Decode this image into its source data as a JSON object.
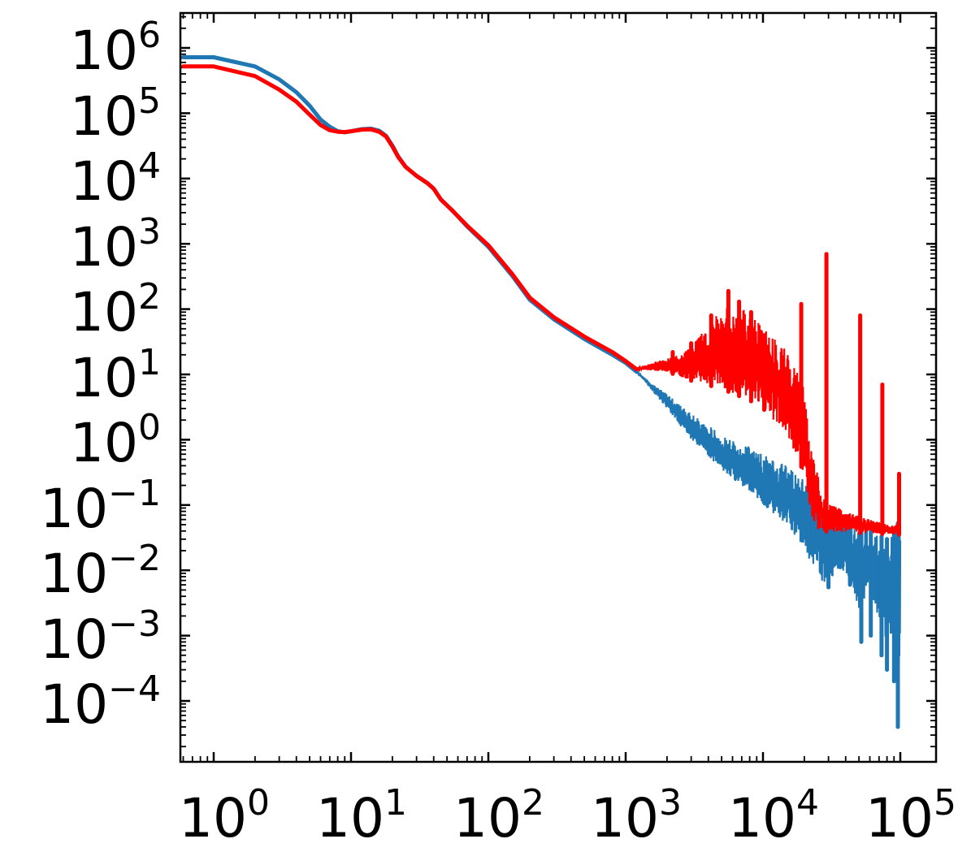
{
  "chart_data": {
    "type": "line",
    "title": "",
    "xlabel": "",
    "ylabel": "",
    "xscale": "log",
    "yscale": "log",
    "xlim": [
      0.55,
      200000
    ],
    "ylim": [
      3.2e-05,
      3500000
    ],
    "grid": false,
    "legend": "none",
    "x_ticks": [
      {
        "base": "10",
        "exp": "0",
        "value": 1
      },
      {
        "base": "10",
        "exp": "1",
        "value": 10
      },
      {
        "base": "10",
        "exp": "2",
        "value": 100
      },
      {
        "base": "10",
        "exp": "3",
        "value": 1000
      },
      {
        "base": "10",
        "exp": "4",
        "value": 10000
      },
      {
        "base": "10",
        "exp": "5",
        "value": 100000
      }
    ],
    "y_ticks": [
      {
        "base": "10",
        "exp": "6",
        "value": 1000000
      },
      {
        "base": "10",
        "exp": "5",
        "value": 100000
      },
      {
        "base": "10",
        "exp": "4",
        "value": 10000
      },
      {
        "base": "10",
        "exp": "3",
        "value": 1000
      },
      {
        "base": "10",
        "exp": "2",
        "value": 100
      },
      {
        "base": "10",
        "exp": "1",
        "value": 10
      },
      {
        "base": "10",
        "exp": "0",
        "value": 1
      },
      {
        "base": "10",
        "exp": "−1",
        "value": 0.1
      },
      {
        "base": "10",
        "exp": "−2",
        "value": 0.01
      },
      {
        "base": "10",
        "exp": "−3",
        "value": 0.001
      },
      {
        "base": "10",
        "exp": "−4",
        "value": 0.0001
      }
    ],
    "series": [
      {
        "name": "blue spectrum",
        "color": "#1f77b4",
        "smooth": [
          [
            0.6,
            720000
          ],
          [
            1,
            720000
          ],
          [
            2,
            520000
          ],
          [
            3,
            330000
          ],
          [
            4,
            210000
          ],
          [
            5,
            130000
          ],
          [
            6,
            80000
          ],
          [
            7,
            62000
          ],
          [
            8,
            53000
          ],
          [
            9,
            51000
          ],
          [
            10,
            53000
          ],
          [
            12,
            57000
          ],
          [
            14,
            58000
          ],
          [
            16,
            54000
          ],
          [
            18,
            45000
          ],
          [
            20,
            32000
          ],
          [
            22,
            22000
          ],
          [
            25,
            15000
          ],
          [
            30,
            11000
          ],
          [
            36,
            8500
          ],
          [
            40,
            7000
          ],
          [
            45,
            4800
          ],
          [
            55,
            3200
          ],
          [
            70,
            1850
          ],
          [
            100,
            900
          ],
          [
            150,
            320
          ],
          [
            200,
            140
          ],
          [
            300,
            70
          ],
          [
            500,
            35
          ],
          [
            800,
            20
          ],
          [
            1000,
            15
          ],
          [
            1200,
            11
          ]
        ],
        "band": {
          "upper": [
            [
              1200,
              11
            ],
            [
              2000,
              5
            ],
            [
              3000,
              2.5
            ],
            [
              5000,
              1.2
            ],
            [
              8000,
              0.8
            ],
            [
              10000,
              0.6
            ],
            [
              15000,
              0.4
            ],
            [
              22000,
              0.2
            ],
            [
              28000,
              0.08
            ],
            [
              40000,
              0.06
            ],
            [
              60000,
              0.04
            ],
            [
              80000,
              0.03
            ],
            [
              100000,
              0.06
            ]
          ],
          "lower": [
            [
              1200,
              11
            ],
            [
              2000,
              3
            ],
            [
              3000,
              1
            ],
            [
              5000,
              0.35
            ],
            [
              8000,
              0.15
            ],
            [
              10000,
              0.1
            ],
            [
              15000,
              0.05
            ],
            [
              20000,
              0.02
            ],
            [
              28000,
              0.006
            ],
            [
              40000,
              0.01
            ],
            [
              50000,
              0.002
            ],
            [
              60000,
              0.006
            ],
            [
              75000,
              0.0008
            ],
            [
              85000,
              0.001
            ],
            [
              95000,
              5e-05
            ],
            [
              100000,
              0.00015
            ]
          ],
          "spikes": [
            [
              21500,
              0.02
            ],
            [
              30000,
              0.0055
            ],
            [
              43000,
              0.006
            ],
            [
              52000,
              0.0008
            ],
            [
              61000,
              0.001
            ],
            [
              73000,
              0.0005
            ],
            [
              80000,
              0.0003
            ],
            [
              90000,
              0.0002
            ],
            [
              96000,
              4e-05
            ]
          ]
        }
      },
      {
        "name": "red spectrum",
        "color": "#ff0000",
        "smooth": [
          [
            0.6,
            520000
          ],
          [
            1,
            520000
          ],
          [
            2,
            370000
          ],
          [
            3,
            230000
          ],
          [
            4,
            150000
          ],
          [
            5,
            95000
          ],
          [
            6,
            66000
          ],
          [
            7,
            55000
          ],
          [
            8,
            52000
          ],
          [
            9,
            51500
          ],
          [
            10,
            53000
          ],
          [
            12,
            56000
          ],
          [
            14,
            56500
          ],
          [
            16,
            52000
          ],
          [
            18,
            44000
          ],
          [
            20,
            31000
          ],
          [
            22,
            21500
          ],
          [
            25,
            15000
          ],
          [
            30,
            11000
          ],
          [
            36,
            8500
          ],
          [
            40,
            7000
          ],
          [
            45,
            4800
          ],
          [
            55,
            3200
          ],
          [
            70,
            1900
          ],
          [
            100,
            950
          ],
          [
            150,
            340
          ],
          [
            200,
            150
          ],
          [
            300,
            75
          ],
          [
            500,
            38
          ],
          [
            800,
            22
          ],
          [
            1000,
            16
          ],
          [
            1200,
            12
          ]
        ],
        "band": {
          "upper": [
            [
              1200,
              12
            ],
            [
              1500,
              15
            ],
            [
              2500,
              20
            ],
            [
              3500,
              40
            ],
            [
              5000,
              110
            ],
            [
              6500,
              110
            ],
            [
              8000,
              90
            ],
            [
              10000,
              55
            ],
            [
              13000,
              35
            ],
            [
              16000,
              20
            ],
            [
              20000,
              6
            ],
            [
              22000,
              0.8
            ],
            [
              28000,
              0.12
            ],
            [
              40000,
              0.08
            ],
            [
              60000,
              0.06
            ],
            [
              80000,
              0.05
            ],
            [
              100000,
              0.05
            ]
          ],
          "lower": [
            [
              1200,
              12
            ],
            [
              2000,
              11
            ],
            [
              3000,
              8
            ],
            [
              5000,
              6
            ],
            [
              8000,
              4
            ],
            [
              10000,
              3
            ],
            [
              15000,
              1.2
            ],
            [
              20000,
              0.3
            ],
            [
              22000,
              0.08
            ],
            [
              25000,
              0.04
            ],
            [
              100000,
              0.035
            ]
          ],
          "spikes": [
            [
              2200,
              22
            ],
            [
              3000,
              30
            ],
            [
              4200,
              80
            ],
            [
              5600,
              190
            ],
            [
              6700,
              130
            ],
            [
              8200,
              90
            ],
            [
              10200,
              40
            ],
            [
              19000,
              120
            ],
            [
              29000,
              700
            ],
            [
              51000,
              80
            ],
            [
              74000,
              7
            ],
            [
              98000,
              0.3
            ]
          ]
        }
      }
    ]
  }
}
